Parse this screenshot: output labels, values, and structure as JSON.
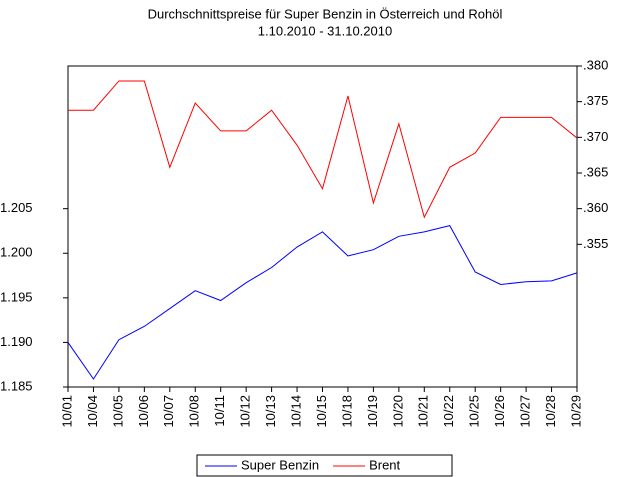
{
  "chart_data": {
    "type": "line",
    "title": "Durchschnittspreise für Super Benzin in Österreich und Rohöl",
    "subtitle": "1.10.2010 - 31.10.2010",
    "categories": [
      "10/01",
      "10/04",
      "10/05",
      "10/06",
      "10/07",
      "10/08",
      "10/11",
      "10/12",
      "10/13",
      "10/14",
      "10/15",
      "10/18",
      "10/19",
      "10/20",
      "10/21",
      "10/22",
      "10/25",
      "10/26",
      "10/27",
      "10/28",
      "10/29"
    ],
    "series": [
      {
        "name": "Super Benzin",
        "color": "#0000ff",
        "axis": "y",
        "values": [
          1.19,
          1.1859,
          1.1903,
          1.1918,
          1.1938,
          1.1958,
          1.1947,
          1.1967,
          1.1984,
          1.2007,
          1.2024,
          1.1997,
          1.2004,
          1.2019,
          1.2024,
          1.2031,
          1.1979,
          1.1965,
          1.1968,
          1.1969,
          1.1978
        ]
      },
      {
        "name": "Brent",
        "color": "#ff0000",
        "axis": "y2",
        "values": [
          0.3738,
          0.3738,
          0.3779,
          0.3779,
          0.3658,
          0.3748,
          0.3709,
          0.3709,
          0.3738,
          0.3689,
          0.3628,
          0.3758,
          0.3608,
          0.3719,
          0.3588,
          0.3658,
          0.3678,
          0.3728,
          0.3728,
          0.3728,
          0.3699
        ]
      }
    ],
    "ylim": [
      1.185,
      1.221
    ],
    "yticks": [
      1.185,
      {
        "value": 1.19,
        "label": "1.190"
      },
      1.195,
      {
        "value": 1.2,
        "label": "1.200"
      },
      1.205
    ],
    "y2lim": [
      0.335,
      0.38
    ],
    "y2ticks": [
      {
        "value": 0.355,
        "label": ".355"
      },
      {
        "value": 0.36,
        "label": ".360"
      },
      {
        "value": 0.365,
        "label": ".365"
      },
      {
        "value": 0.37,
        "label": ".370"
      },
      {
        "value": 0.375,
        "label": ".375"
      },
      {
        "value": 0.38,
        "label": ".380"
      }
    ],
    "grid": false,
    "legend": "bottom"
  }
}
